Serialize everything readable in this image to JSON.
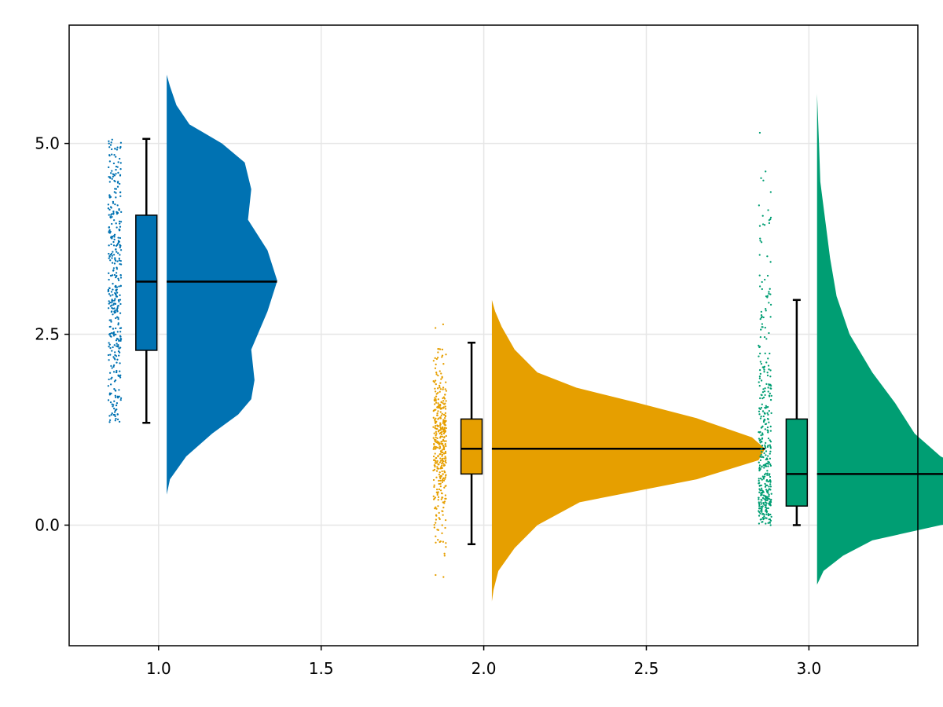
{
  "chart_data": {
    "type": "raincloud",
    "title": "",
    "xlabel": "",
    "ylabel": "",
    "xlim": [
      0.725,
      3.335
    ],
    "ylim": [
      -1.58,
      6.55
    ],
    "xticks": [
      1.0,
      1.5,
      2.0,
      2.5,
      3.0
    ],
    "xtick_labels": [
      "1.0",
      "1.5",
      "2.0",
      "2.5",
      "3.0"
    ],
    "yticks": [
      0.0,
      2.5,
      5.0
    ],
    "ytick_labels": [
      "0.0",
      "2.5",
      "5.0"
    ],
    "grid": true,
    "legend": "none",
    "groups": [
      {
        "category": 1.0,
        "color": "#0072b2",
        "points_range": [
          1.35,
          5.05
        ],
        "box": {
          "whisker_low": 1.34,
          "q1": 2.29,
          "median": 3.19,
          "q3": 4.06,
          "whisker_high": 5.06
        },
        "density_range": [
          0.4,
          5.9
        ],
        "density": [
          [
            0.4,
            0.0
          ],
          [
            0.6,
            0.01
          ],
          [
            0.9,
            0.06
          ],
          [
            1.2,
            0.14
          ],
          [
            1.45,
            0.22
          ],
          [
            1.65,
            0.26
          ],
          [
            1.9,
            0.27
          ],
          [
            2.3,
            0.26
          ],
          [
            2.8,
            0.31
          ],
          [
            3.2,
            0.34
          ],
          [
            3.6,
            0.31
          ],
          [
            4.0,
            0.25
          ],
          [
            4.4,
            0.26
          ],
          [
            4.75,
            0.24
          ],
          [
            5.0,
            0.17
          ],
          [
            5.25,
            0.07
          ],
          [
            5.5,
            0.03
          ],
          [
            5.75,
            0.01
          ],
          [
            5.9,
            0.0
          ]
        ]
      },
      {
        "category": 2.0,
        "color": "#e69f00",
        "points_range": [
          -0.68,
          2.63
        ],
        "box": {
          "whisker_low": -0.25,
          "q1": 0.67,
          "median": 1.0,
          "q3": 1.39,
          "whisker_high": 2.39
        },
        "density_range": [
          -1.0,
          2.95
        ],
        "density": [
          [
            -1.0,
            0.0
          ],
          [
            -0.85,
            0.005
          ],
          [
            -0.6,
            0.02
          ],
          [
            -0.3,
            0.07
          ],
          [
            0.0,
            0.14
          ],
          [
            0.3,
            0.27
          ],
          [
            0.6,
            0.63
          ],
          [
            0.85,
            0.82
          ],
          [
            1.0,
            0.84
          ],
          [
            1.15,
            0.8
          ],
          [
            1.4,
            0.63
          ],
          [
            1.6,
            0.45
          ],
          [
            1.8,
            0.26
          ],
          [
            2.0,
            0.14
          ],
          [
            2.3,
            0.07
          ],
          [
            2.6,
            0.03
          ],
          [
            2.8,
            0.01
          ],
          [
            2.95,
            0.0
          ]
        ]
      },
      {
        "category": 3.0,
        "color": "#009e73",
        "points_range": [
          0.0,
          5.14
        ],
        "box": {
          "whisker_low": 0.0,
          "q1": 0.25,
          "median": 0.67,
          "q3": 1.39,
          "whisker_high": 2.95
        },
        "density_range": [
          -0.78,
          5.65
        ],
        "density": [
          [
            -0.78,
            0.0
          ],
          [
            -0.6,
            0.02
          ],
          [
            -0.4,
            0.08
          ],
          [
            -0.2,
            0.17
          ],
          [
            0.0,
            0.38
          ],
          [
            0.15,
            0.66
          ],
          [
            0.3,
            0.76
          ],
          [
            0.45,
            0.66
          ],
          [
            0.65,
            0.5
          ],
          [
            0.9,
            0.38
          ],
          [
            1.2,
            0.3
          ],
          [
            1.6,
            0.24
          ],
          [
            2.0,
            0.17
          ],
          [
            2.5,
            0.1
          ],
          [
            3.0,
            0.06
          ],
          [
            3.5,
            0.04
          ],
          [
            4.0,
            0.025
          ],
          [
            4.5,
            0.01
          ],
          [
            5.0,
            0.006
          ],
          [
            5.65,
            0.0
          ]
        ]
      }
    ]
  }
}
